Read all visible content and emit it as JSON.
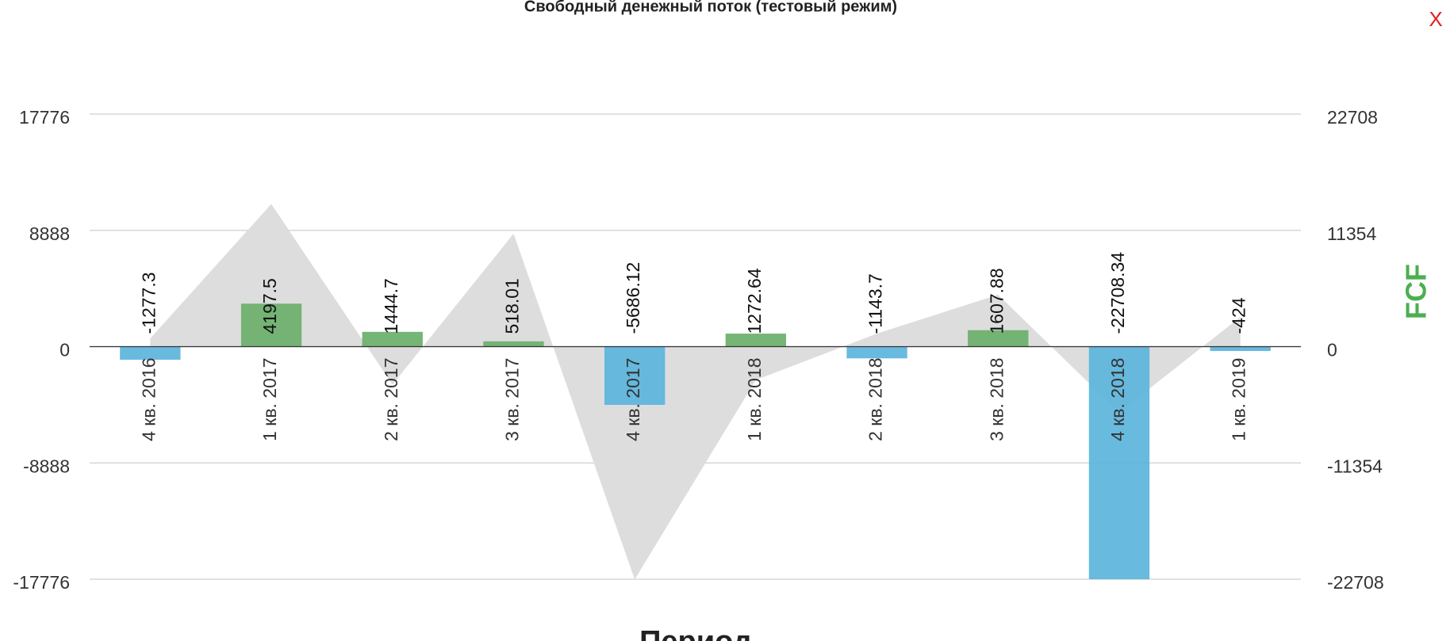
{
  "chart_data": {
    "type": "bar",
    "title": "Свободный денежный поток (тестовый режим)",
    "close_label": "X",
    "x_label": "Период",
    "y2_label": "FCF",
    "categories": [
      "4 кв. 2016",
      "1 кв. 2017",
      "2 кв. 2017",
      "3 кв. 2017",
      "4 кв. 2017",
      "1 кв. 2018",
      "2 кв. 2018",
      "3 кв. 2018",
      "4 кв. 2018",
      "1 кв. 2019"
    ],
    "series": [
      {
        "type": "area",
        "color": "#dddddd",
        "values": [
          630,
          10900,
          -2900,
          8640,
          -17800,
          -2550,
          1000,
          3970,
          -5030,
          2270
        ]
      },
      {
        "type": "bar",
        "axis": "y2",
        "positive_color": "#6aaf6a",
        "negative_color": "#5bb4dc",
        "values": [
          -1277.3,
          4197.5,
          1444.7,
          518.01,
          -5686.12,
          1272.64,
          -1143.7,
          1607.88,
          -22708.34,
          -424
        ]
      }
    ],
    "ylim": [
      -17776,
      17776
    ],
    "yticks": [
      -17776,
      -8888,
      0,
      8888,
      17776
    ],
    "y2lim": [
      -22708,
      22708
    ],
    "y2ticks": [
      -22708,
      -11354,
      0,
      11354,
      22708
    ],
    "grid": true
  }
}
